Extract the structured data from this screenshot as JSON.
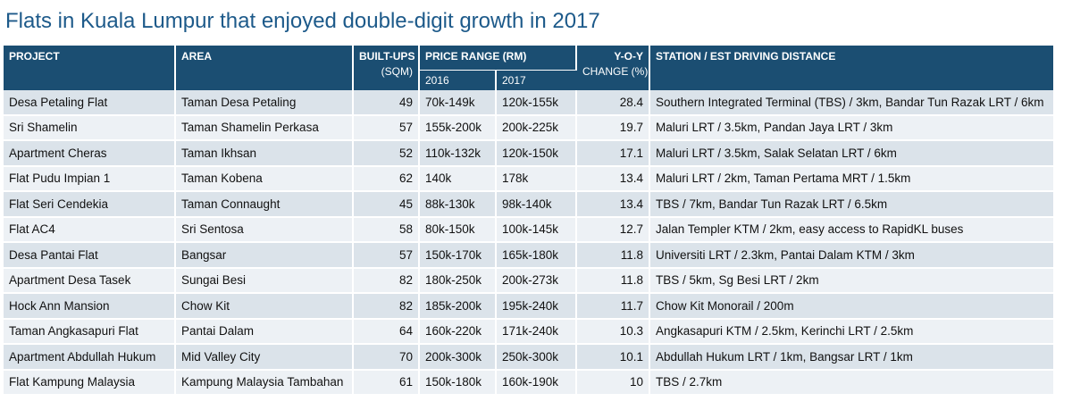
{
  "title": "Flats in Kuala Lumpur that enjoyed double-digit growth in 2017",
  "headers": {
    "project": "PROJECT",
    "area": "AREA",
    "builtups_line1": "BUILT-UPS",
    "builtups_line2": "(SQM)",
    "price_range": "PRICE RANGE (RM)",
    "year_2016": "2016",
    "year_2017": "2017",
    "yoy_line1": "Y-O-Y",
    "yoy_line2": "CHANGE (%)",
    "station": "STATION / EST DRIVING DISTANCE"
  },
  "rows": [
    {
      "project": "Desa Petaling Flat",
      "area": "Taman Desa Petaling",
      "builtups": "49",
      "price_2016": "70k-149k",
      "price_2017": "120k-155k",
      "yoy": "28.4",
      "station": "Southern Integrated Terminal (TBS) / 3km, Bandar Tun Razak LRT / 6km"
    },
    {
      "project": "Sri Shamelin",
      "area": "Taman Shamelin Perkasa",
      "builtups": "57",
      "price_2016": "155k-200k",
      "price_2017": "200k-225k",
      "yoy": "19.7",
      "station": "Maluri LRT / 3.5km, Pandan Jaya LRT / 3km"
    },
    {
      "project": "Apartment Cheras",
      "area": "Taman Ikhsan",
      "builtups": "52",
      "price_2016": "110k-132k",
      "price_2017": "120k-150k",
      "yoy": "17.1",
      "station": "Maluri LRT / 3.5km, Salak Selatan LRT / 6km"
    },
    {
      "project": "Flat Pudu Impian 1",
      "area": "Taman Kobena",
      "builtups": "62",
      "price_2016": "140k",
      "price_2017": "178k",
      "yoy": "13.4",
      "station": "Maluri LRT / 2km, Taman Pertama MRT / 1.5km"
    },
    {
      "project": "Flat Seri Cendekia",
      "area": "Taman Connaught",
      "builtups": "45",
      "price_2016": "88k-130k",
      "price_2017": "98k-140k",
      "yoy": "13.4",
      "station": "TBS / 7km, Bandar Tun Razak LRT / 6.5km"
    },
    {
      "project": "Flat AC4",
      "area": "Sri Sentosa",
      "builtups": "58",
      "price_2016": "80k-150k",
      "price_2017": "100k-145k",
      "yoy": "12.7",
      "station": "Jalan Templer KTM / 2km, easy access to RapidKL buses"
    },
    {
      "project": "Desa Pantai Flat",
      "area": "Bangsar",
      "builtups": "57",
      "price_2016": "150k-170k",
      "price_2017": "165k-180k",
      "yoy": "11.8",
      "station": "Universiti LRT / 2.3km, Pantai Dalam KTM / 3km"
    },
    {
      "project": "Apartment Desa Tasek",
      "area": "Sungai Besi",
      "builtups": "82",
      "price_2016": "180k-250k",
      "price_2017": "200k-273k",
      "yoy": "11.8",
      "station": "TBS / 5km, Sg Besi LRT / 2km"
    },
    {
      "project": "Hock Ann Mansion",
      "area": "Chow Kit",
      "builtups": "82",
      "price_2016": "185k-200k",
      "price_2017": "195k-240k",
      "yoy": "11.7",
      "station": "Chow Kit Monorail / 200m"
    },
    {
      "project": "Taman Angkasapuri Flat",
      "area": "Pantai Dalam",
      "builtups": "64",
      "price_2016": "160k-220k",
      "price_2017": "171k-240k",
      "yoy": "10.3",
      "station": "Angkasapuri KTM / 2.5km, Kerinchi LRT / 2.5km"
    },
    {
      "project": "Apartment Abdullah Hukum",
      "area": "Mid Valley City",
      "builtups": "70",
      "price_2016": "200k-300k",
      "price_2017": "250k-300k",
      "yoy": "10.1",
      "station": "Abdullah Hukum LRT / 1km, Bangsar LRT / 1km"
    },
    {
      "project": "Flat Kampung Malaysia",
      "area": "Kampung Malaysia Tambahan",
      "builtups": "61",
      "price_2016": "150k-180k",
      "price_2017": "160k-190k",
      "yoy": "10",
      "station": "TBS / 2.7km"
    }
  ],
  "colors": {
    "title": "#1d5a8a",
    "header_bg": "#1b4e72",
    "row_odd": "#dbe3ea",
    "row_even": "#edf1f5"
  }
}
